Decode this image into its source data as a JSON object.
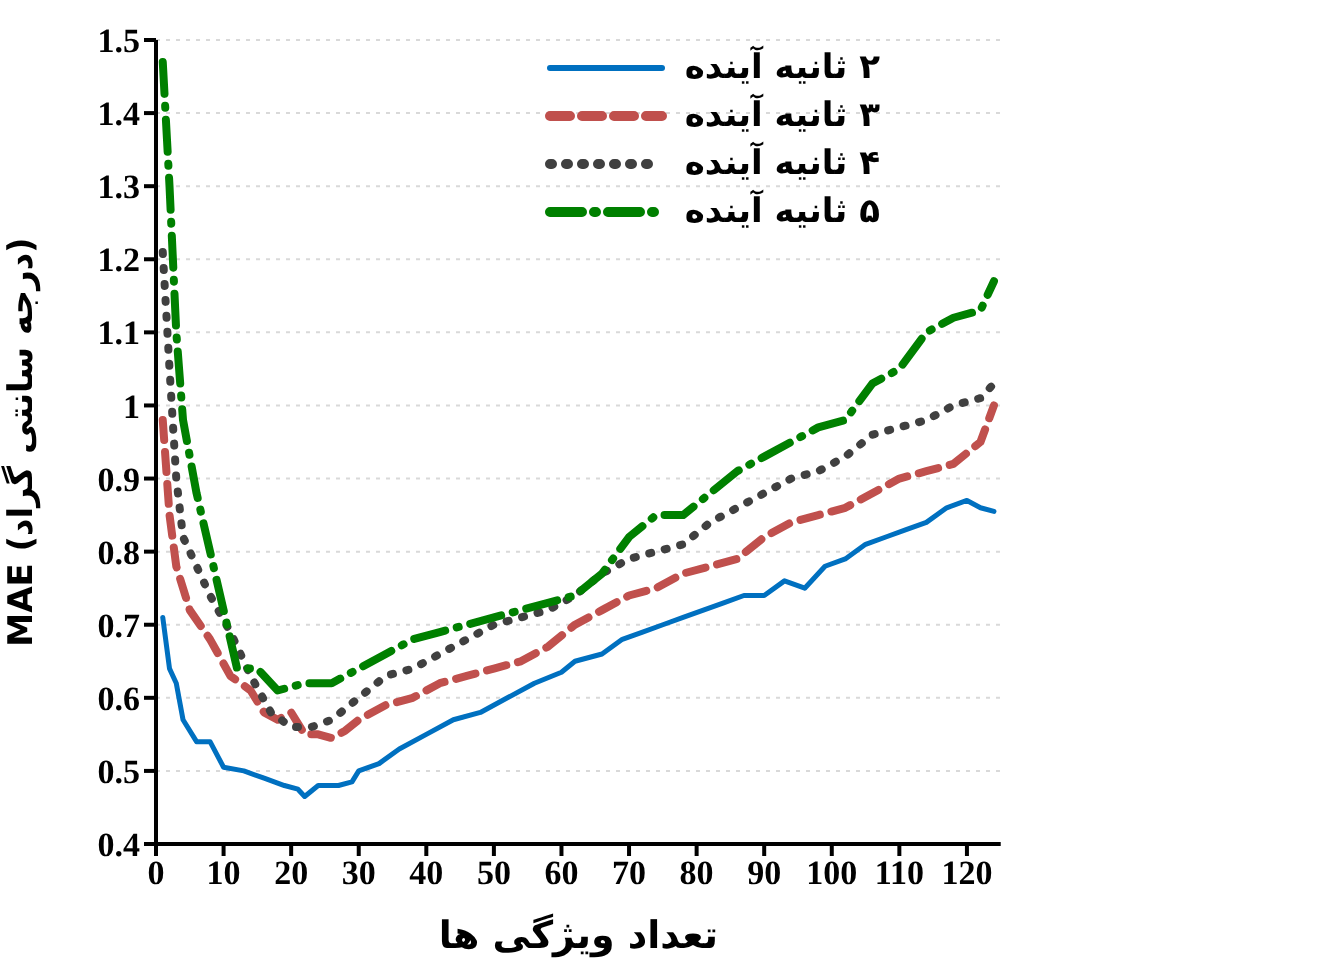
{
  "chart_data": {
    "type": "line",
    "xlabel": "تعداد ویژگی ها",
    "ylabel": "MAE (درجه سانتی گراد)",
    "xlim": [
      0,
      125
    ],
    "xticks": [
      0,
      10,
      20,
      30,
      40,
      50,
      60,
      70,
      80,
      90,
      100,
      110,
      120
    ],
    "ylim": [
      0.4,
      1.5
    ],
    "yticks": [
      0.4,
      0.5,
      0.6,
      0.7,
      0.8,
      0.9,
      1,
      1.1,
      1.2,
      1.3,
      1.4,
      1.5
    ],
    "grid": "y",
    "legend": "top right",
    "series": [
      {
        "name": "۲ ثانیه آینده",
        "color": "#0070c0",
        "line_style": "solid",
        "x": [
          1,
          2,
          3,
          4,
          6,
          8,
          10,
          13,
          16,
          19,
          21,
          22,
          24,
          27,
          29,
          30,
          33,
          36,
          40,
          44,
          48,
          52,
          56,
          60,
          62,
          66,
          69,
          72,
          75,
          78,
          81,
          84,
          87,
          90,
          93,
          96,
          99,
          102,
          105,
          108,
          111,
          114,
          117,
          120,
          122,
          124
        ],
        "values": [
          0.71,
          0.64,
          0.62,
          0.57,
          0.54,
          0.54,
          0.505,
          0.5,
          0.49,
          0.48,
          0.475,
          0.465,
          0.48,
          0.48,
          0.485,
          0.5,
          0.51,
          0.53,
          0.55,
          0.57,
          0.58,
          0.6,
          0.62,
          0.635,
          0.65,
          0.66,
          0.68,
          0.69,
          0.7,
          0.71,
          0.72,
          0.73,
          0.74,
          0.74,
          0.76,
          0.75,
          0.78,
          0.79,
          0.81,
          0.82,
          0.83,
          0.84,
          0.86,
          0.87,
          0.86,
          0.855
        ]
      },
      {
        "name": "۳ ثانیه آینده",
        "color": "#c0504d",
        "line_style": "dashed",
        "x": [
          1,
          2,
          3,
          5,
          8,
          11,
          14,
          16,
          18,
          20,
          22,
          24,
          26,
          28,
          30,
          34,
          38,
          42,
          46,
          50,
          54,
          58,
          62,
          66,
          70,
          74,
          78,
          82,
          86,
          90,
          94,
          98,
          102,
          106,
          110,
          114,
          118,
          122,
          124
        ],
        "values": [
          0.98,
          0.85,
          0.78,
          0.72,
          0.68,
          0.63,
          0.61,
          0.58,
          0.57,
          0.58,
          0.55,
          0.55,
          0.545,
          0.555,
          0.57,
          0.59,
          0.6,
          0.62,
          0.63,
          0.64,
          0.65,
          0.67,
          0.7,
          0.72,
          0.74,
          0.75,
          0.77,
          0.78,
          0.79,
          0.82,
          0.84,
          0.85,
          0.86,
          0.88,
          0.9,
          0.91,
          0.92,
          0.95,
          1
        ]
      },
      {
        "name": "۴ ثانیه آینده",
        "color": "#404040",
        "line_style": "dotted",
        "x": [
          1,
          2,
          3,
          4,
          6,
          8,
          11,
          14,
          17,
          20,
          23,
          26,
          30,
          34,
          38,
          42,
          46,
          50,
          54,
          58,
          62,
          66,
          70,
          74,
          78,
          82,
          86,
          90,
          94,
          98,
          102,
          106,
          110,
          114,
          118,
          122,
          124
        ],
        "values": [
          1.21,
          1.05,
          0.9,
          0.82,
          0.78,
          0.74,
          0.69,
          0.63,
          0.58,
          0.56,
          0.56,
          0.57,
          0.6,
          0.63,
          0.64,
          0.66,
          0.68,
          0.7,
          0.71,
          0.72,
          0.74,
          0.77,
          0.79,
          0.8,
          0.81,
          0.84,
          0.86,
          0.88,
          0.9,
          0.91,
          0.93,
          0.96,
          0.97,
          0.98,
          1,
          1.01,
          1.03
        ]
      },
      {
        "name": "۵ ثانیه آینده",
        "color": "#008000",
        "line_style": "dashdot",
        "x": [
          1,
          2,
          3,
          4,
          6,
          8,
          10,
          12,
          15,
          18,
          22,
          26,
          30,
          34,
          38,
          42,
          46,
          50,
          54,
          58,
          62,
          66,
          70,
          74,
          78,
          82,
          86,
          90,
          94,
          98,
          102,
          106,
          110,
          114,
          118,
          122,
          124
        ],
        "values": [
          1.47,
          1.3,
          1.1,
          0.98,
          0.88,
          0.8,
          0.72,
          0.64,
          0.64,
          0.61,
          0.62,
          0.62,
          0.64,
          0.66,
          0.68,
          0.69,
          0.7,
          0.71,
          0.72,
          0.73,
          0.74,
          0.77,
          0.82,
          0.85,
          0.85,
          0.88,
          0.91,
          0.93,
          0.95,
          0.97,
          0.98,
          1.03,
          1.05,
          1.1,
          1.12,
          1.13,
          1.17
        ]
      }
    ]
  }
}
